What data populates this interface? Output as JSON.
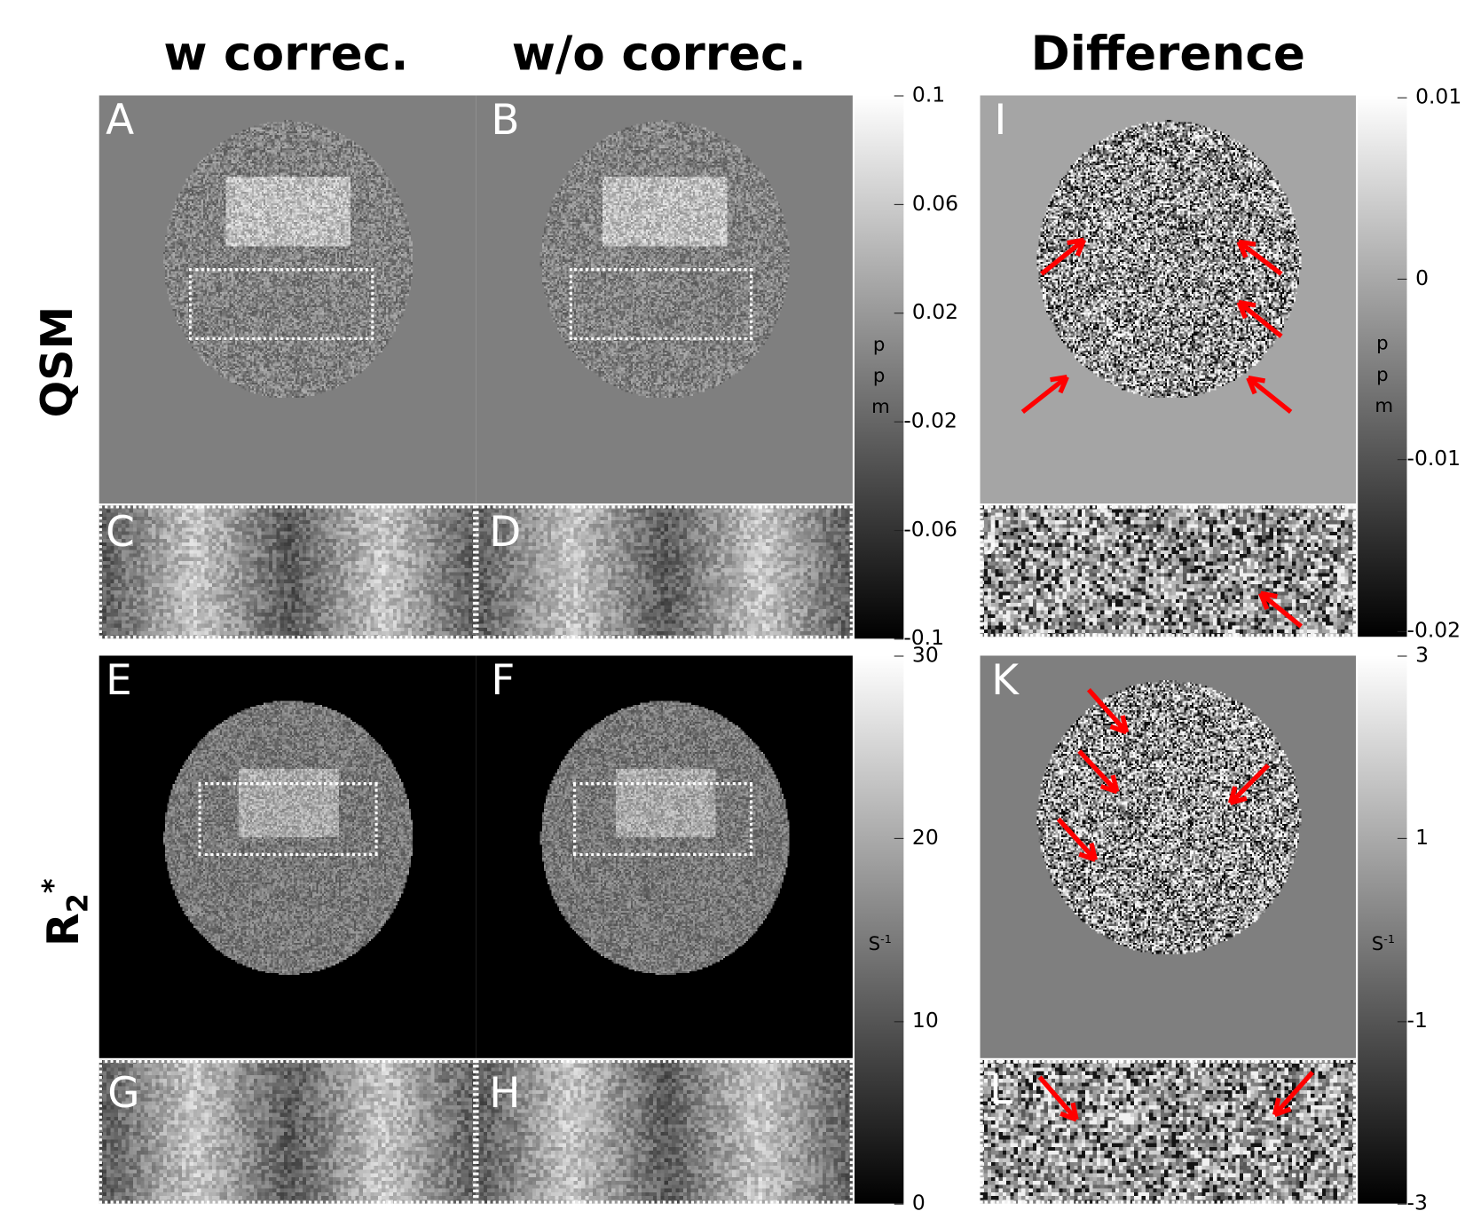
{
  "columns": {
    "with_correction": "w correc.",
    "without_correction": "w/o correc.",
    "difference": "Difference"
  },
  "rows": {
    "qsm": "QSM",
    "r2star_base": "R",
    "r2star_sub": "2",
    "r2star_sup": "*"
  },
  "panels": {
    "A": "A",
    "B": "B",
    "C": "C",
    "D": "D",
    "E": "E",
    "F": "F",
    "G": "G",
    "H": "H",
    "I": "I",
    "J": "J",
    "K": "K",
    "L": "L"
  },
  "colorbars": {
    "qsm": {
      "unit": [
        "p",
        "p",
        "m"
      ],
      "range": [
        -0.1,
        0.1
      ],
      "ticks": [
        "0.1",
        "0.06",
        "0.02",
        "-0.02",
        "-0.06",
        "-0.1"
      ],
      "tick_values": [
        0.1,
        0.06,
        0.02,
        -0.02,
        -0.06,
        -0.1
      ]
    },
    "qsm_diff": {
      "unit": [
        "p",
        "p",
        "m"
      ],
      "range": [
        -0.0198,
        0.0101
      ],
      "ticks": [
        "0.01",
        "0",
        "-0.01",
        "-0.02"
      ],
      "tick_values": [
        0.01,
        0,
        -0.01,
        -0.0195
      ]
    },
    "r2star": {
      "unit": "S",
      "unit_sup": "-1",
      "range": [
        0,
        30
      ],
      "ticks": [
        "30",
        "20",
        "10",
        "0"
      ],
      "tick_values": [
        30,
        20,
        10,
        0
      ]
    },
    "r2star_diff": {
      "unit": "S",
      "unit_sup": "-1",
      "range": [
        -3,
        3
      ],
      "ticks": [
        "3",
        "1",
        "-1",
        "-3"
      ],
      "tick_values": [
        3,
        1,
        -1,
        -3
      ]
    }
  },
  "annotations": {
    "arrow_color": "#ff0000",
    "arrow_count": 12
  }
}
